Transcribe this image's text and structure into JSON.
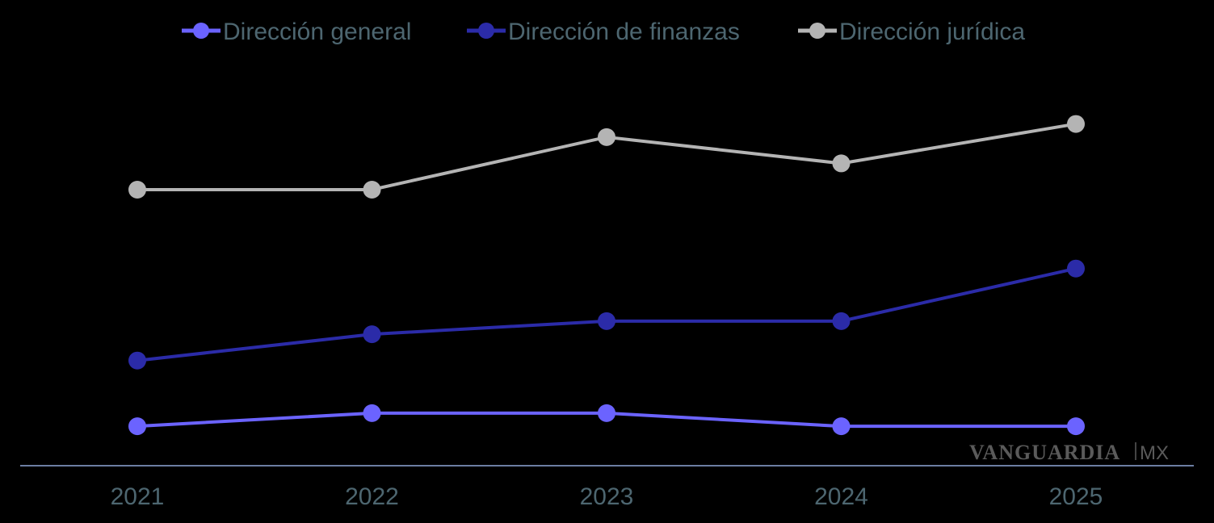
{
  "chart_data": {
    "type": "line",
    "title": "",
    "xlabel": "",
    "ylabel": "",
    "categories": [
      "2021",
      "2022",
      "2023",
      "2024",
      "2025"
    ],
    "ylim": [
      0,
      28
    ],
    "grid": false,
    "legend_position": "top-center",
    "series": [
      {
        "name": "Dirección general",
        "color": "#6b63ff",
        "values": [
          3,
          4,
          4,
          3,
          3
        ]
      },
      {
        "name": "Dirección de finanzas",
        "color": "#2b2ba8",
        "values": [
          8,
          10,
          11,
          11,
          15
        ]
      },
      {
        "name": "Dirección jurídica",
        "color": "#b4b4b4",
        "values": [
          21,
          21,
          25,
          23,
          26
        ]
      }
    ]
  },
  "watermark": {
    "brand": "VANGUARDIA",
    "suffix": "MX"
  }
}
